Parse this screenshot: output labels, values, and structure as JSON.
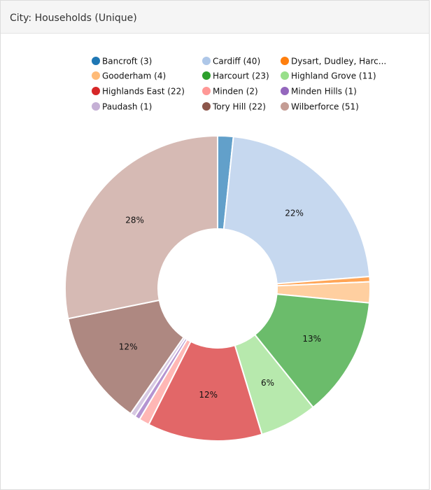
{
  "header": {
    "title": "City: Households (Unique)"
  },
  "chart_data": {
    "type": "donut",
    "categories": [
      "Bancroft (3)",
      "Cardiff (40)",
      "Dysart, Dudley, Harc...",
      "Gooderham (4)",
      "Harcourt (23)",
      "Highland Grove (11)",
      "Highlands East (22)",
      "Minden (2)",
      "Minden Hills (1)",
      "Paudash (1)",
      "Tory Hill (22)",
      "Wilberforce (51)"
    ],
    "values": [
      3,
      40,
      1,
      4,
      23,
      11,
      22,
      2,
      1,
      1,
      22,
      51
    ],
    "value_labels": [
      null,
      "22%",
      null,
      null,
      "13%",
      "6%",
      "12%",
      null,
      null,
      null,
      "12%",
      "28%"
    ],
    "colors": [
      "#1f77b4",
      "#aec7e8",
      "#ff7f0e",
      "#ffbb78",
      "#2ca02c",
      "#98df8a",
      "#d62728",
      "#ff9896",
      "#9467bd",
      "#c5b0d5",
      "#8c564b",
      "#c49c94"
    ]
  }
}
